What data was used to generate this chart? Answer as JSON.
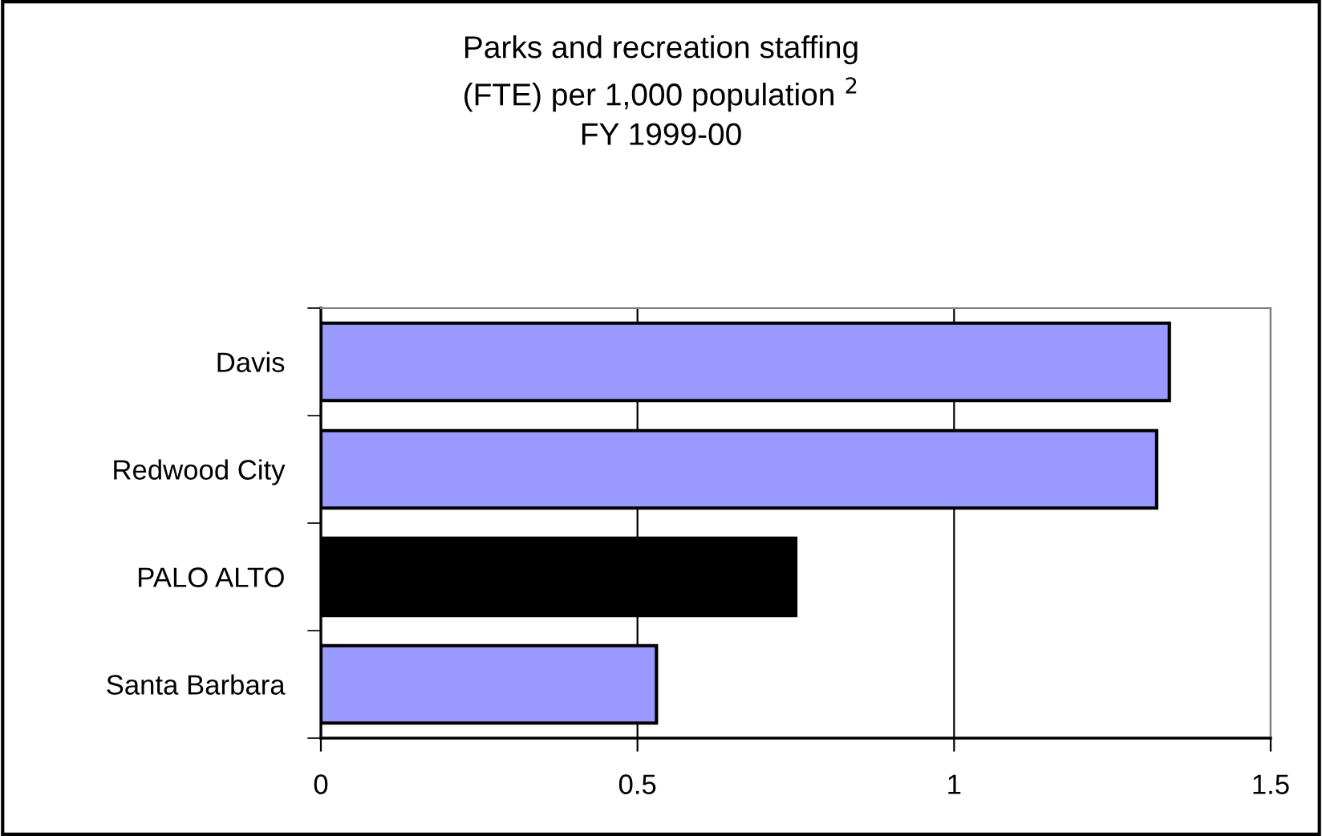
{
  "chart_data": {
    "type": "bar",
    "orientation": "horizontal",
    "title": "Parks and recreation staffing\n(FTE) per 1,000 population $^{2}$\nFY 1999-00",
    "categories": [
      "Davis",
      "Redwood City",
      "PALO ALTO",
      "Santa Barbara"
    ],
    "values": [
      1.34,
      1.32,
      0.75,
      0.53
    ],
    "colors": [
      "#9999ff",
      "#9999ff",
      "#000000",
      "#9999ff"
    ],
    "xlim": [
      0,
      1.5
    ],
    "xticks": [
      0,
      0.5,
      1,
      1.5
    ],
    "grid": "x"
  }
}
